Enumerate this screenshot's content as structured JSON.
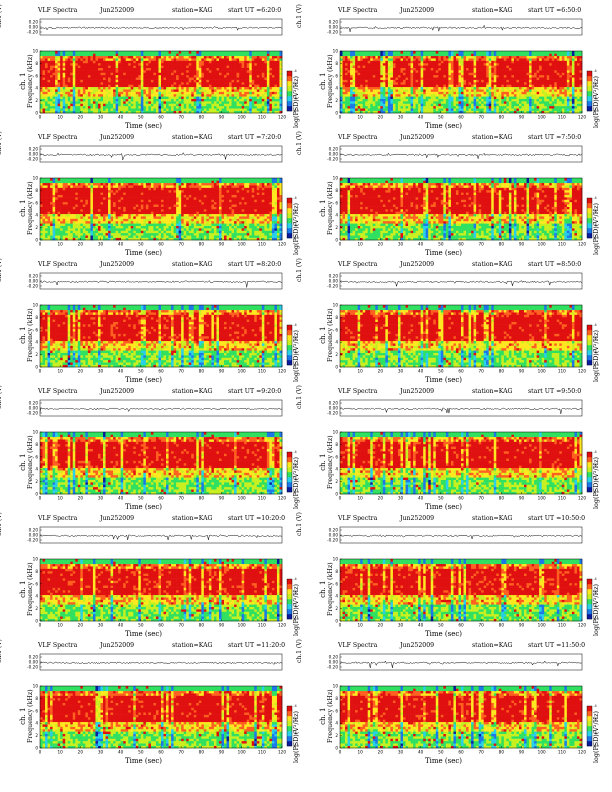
{
  "figure": {
    "colors": {
      "colorbar": [
        "#0a1c9e",
        "#1c78e8",
        "#28d0e8",
        "#30e060",
        "#c8f020",
        "#ffe820",
        "#ff6020",
        "#e01010"
      ]
    },
    "axis_labels": {
      "timeseries_y": "ch.1 (V)",
      "spectrum_y_line1": "ch. 1",
      "spectrum_y_line2": "Frequency (kHz)",
      "x": "Time (sec)",
      "colorbar": "log(PSD)(V²/Hz)"
    }
  },
  "chart_data": [
    {
      "type": "heatmap",
      "title": "VLF Spectra",
      "date": "Jun252009",
      "station": "station=KAG",
      "start_ut": "start UT =6:20:0",
      "x": [
        0,
        10,
        20,
        30,
        40,
        50,
        60,
        70,
        80,
        90,
        100,
        110,
        120
      ],
      "xlim": [
        0,
        120
      ],
      "spectrum_yticks": [
        0,
        2,
        4,
        6,
        8,
        10
      ],
      "ylim": [
        0,
        10
      ],
      "timeseries_yticks": [
        0.2,
        0.0,
        -0.2
      ],
      "colorbar_ticks": [
        -4,
        -6,
        -8,
        -10
      ],
      "grid": false
    },
    {
      "type": "heatmap",
      "title": "VLF Spectra",
      "date": "Jun252009",
      "station": "station=KAG",
      "start_ut": "start UT =6:50:0",
      "x": [
        0,
        10,
        20,
        30,
        40,
        50,
        60,
        70,
        80,
        90,
        100,
        110,
        120
      ],
      "xlim": [
        0,
        120
      ],
      "spectrum_yticks": [
        0,
        2,
        4,
        6,
        8,
        10
      ],
      "ylim": [
        0,
        10
      ],
      "timeseries_yticks": [
        0.2,
        0.0,
        -0.2
      ],
      "colorbar_ticks": [
        -4,
        -6,
        -8,
        -10
      ],
      "grid": false
    },
    {
      "type": "heatmap",
      "title": "VLF Spectra",
      "date": "Jun252009",
      "station": "station=KAG",
      "start_ut": "start UT =7:20:0",
      "x": [
        0,
        10,
        20,
        30,
        40,
        50,
        60,
        70,
        80,
        90,
        100,
        110,
        120
      ],
      "xlim": [
        0,
        120
      ],
      "spectrum_yticks": [
        0,
        2,
        4,
        6,
        8,
        10
      ],
      "ylim": [
        0,
        10
      ],
      "timeseries_yticks": [
        0.2,
        0.0,
        -0.2
      ],
      "colorbar_ticks": [
        -4,
        -6,
        -8,
        -10
      ],
      "grid": false
    },
    {
      "type": "heatmap",
      "title": "VLF Spectra",
      "date": "Jun252009",
      "station": "station=KAG",
      "start_ut": "start UT =7:50:0",
      "x": [
        0,
        10,
        20,
        30,
        40,
        50,
        60,
        70,
        80,
        90,
        100,
        110,
        120
      ],
      "xlim": [
        0,
        120
      ],
      "spectrum_yticks": [
        0,
        2,
        4,
        6,
        8,
        10
      ],
      "ylim": [
        0,
        10
      ],
      "timeseries_yticks": [
        0.2,
        0.0,
        -0.2
      ],
      "colorbar_ticks": [
        -4,
        -6,
        -8,
        -10
      ],
      "grid": false
    },
    {
      "type": "heatmap",
      "title": "VLF Spectra",
      "date": "Jun252009",
      "station": "station=KAG",
      "start_ut": "start UT =8:20:0",
      "x": [
        0,
        10,
        20,
        30,
        40,
        50,
        60,
        70,
        80,
        90,
        100,
        110,
        120
      ],
      "xlim": [
        0,
        120
      ],
      "spectrum_yticks": [
        0,
        2,
        4,
        6,
        8,
        10
      ],
      "ylim": [
        0,
        10
      ],
      "timeseries_yticks": [
        0.2,
        0.0,
        -0.2
      ],
      "colorbar_ticks": [
        -4,
        -6,
        -8,
        -10
      ],
      "grid": false
    },
    {
      "type": "heatmap",
      "title": "VLF Spectra",
      "date": "Jun252009",
      "station": "station=KAG",
      "start_ut": "start UT =8:50:0",
      "x": [
        0,
        10,
        20,
        30,
        40,
        50,
        60,
        70,
        80,
        90,
        100,
        110,
        120
      ],
      "xlim": [
        0,
        120
      ],
      "spectrum_yticks": [
        0,
        2,
        4,
        6,
        8,
        10
      ],
      "ylim": [
        0,
        10
      ],
      "timeseries_yticks": [
        0.2,
        0.0,
        -0.2
      ],
      "colorbar_ticks": [
        -4,
        -6,
        -8,
        -10
      ],
      "grid": false
    },
    {
      "type": "heatmap",
      "title": "VLF Spectra",
      "date": "Jun252009",
      "station": "station=KAG",
      "start_ut": "start UT =9:20:0",
      "x": [
        0,
        10,
        20,
        30,
        40,
        50,
        60,
        70,
        80,
        90,
        100,
        110,
        120
      ],
      "xlim": [
        0,
        120
      ],
      "spectrum_yticks": [
        0,
        2,
        4,
        6,
        8,
        10
      ],
      "ylim": [
        0,
        10
      ],
      "timeseries_yticks": [
        0.2,
        0.0,
        -0.2
      ],
      "colorbar_ticks": [
        -4,
        -6,
        -8,
        -10
      ],
      "grid": false
    },
    {
      "type": "heatmap",
      "title": "VLF Spectra",
      "date": "Jun252009",
      "station": "station=KAG",
      "start_ut": "start UT =9:50:0",
      "x": [
        0,
        10,
        20,
        30,
        40,
        50,
        60,
        70,
        80,
        90,
        100,
        110,
        120
      ],
      "xlim": [
        0,
        120
      ],
      "spectrum_yticks": [
        0,
        2,
        4,
        6,
        8,
        10
      ],
      "ylim": [
        0,
        10
      ],
      "timeseries_yticks": [
        0.2,
        0.0,
        -0.2
      ],
      "colorbar_ticks": [
        -4,
        -6,
        -8,
        -10
      ],
      "grid": false
    },
    {
      "type": "heatmap",
      "title": "VLF Spectra",
      "date": "Jun252009",
      "station": "station=KAG",
      "start_ut": "start UT =10:20:0",
      "x": [
        0,
        10,
        20,
        30,
        40,
        50,
        60,
        70,
        80,
        90,
        100,
        110,
        120
      ],
      "xlim": [
        0,
        120
      ],
      "spectrum_yticks": [
        0,
        2,
        4,
        6,
        8,
        10
      ],
      "ylim": [
        0,
        10
      ],
      "timeseries_yticks": [
        0.2,
        0.0,
        -0.2
      ],
      "colorbar_ticks": [
        -4,
        -6,
        -8,
        -10
      ],
      "grid": false
    },
    {
      "type": "heatmap",
      "title": "VLF Spectra",
      "date": "Jun252009",
      "station": "station=KAG",
      "start_ut": "start UT =10:50:0",
      "x": [
        0,
        10,
        20,
        30,
        40,
        50,
        60,
        70,
        80,
        90,
        100,
        110,
        120
      ],
      "xlim": [
        0,
        120
      ],
      "spectrum_yticks": [
        0,
        2,
        4,
        6,
        8,
        10
      ],
      "ylim": [
        0,
        10
      ],
      "timeseries_yticks": [
        0.2,
        0.0,
        -0.2
      ],
      "colorbar_ticks": [
        -4,
        -6,
        -8,
        -10
      ],
      "grid": false
    },
    {
      "type": "heatmap",
      "title": "VLF Spectra",
      "date": "Jun252009",
      "station": "station=KAG",
      "start_ut": "start UT =11:20:0",
      "x": [
        0,
        10,
        20,
        30,
        40,
        50,
        60,
        70,
        80,
        90,
        100,
        110,
        120
      ],
      "xlim": [
        0,
        120
      ],
      "spectrum_yticks": [
        0,
        2,
        4,
        6,
        8,
        10
      ],
      "ylim": [
        0,
        10
      ],
      "timeseries_yticks": [
        0.2,
        0.0,
        -0.2
      ],
      "colorbar_ticks": [
        -4,
        -6,
        -8,
        -10
      ],
      "grid": false
    },
    {
      "type": "heatmap",
      "title": "VLF Spectra",
      "date": "Jun252009",
      "station": "station=KAG",
      "start_ut": "start UT =11:50:0",
      "x": [
        0,
        10,
        20,
        30,
        40,
        50,
        60,
        70,
        80,
        90,
        100,
        110,
        120
      ],
      "xlim": [
        0,
        120
      ],
      "spectrum_yticks": [
        0,
        2,
        4,
        6,
        8,
        10
      ],
      "ylim": [
        0,
        10
      ],
      "timeseries_yticks": [
        0.2,
        0.0,
        -0.2
      ],
      "colorbar_ticks": [
        -4,
        -6,
        -8,
        -10
      ],
      "grid": false
    }
  ]
}
